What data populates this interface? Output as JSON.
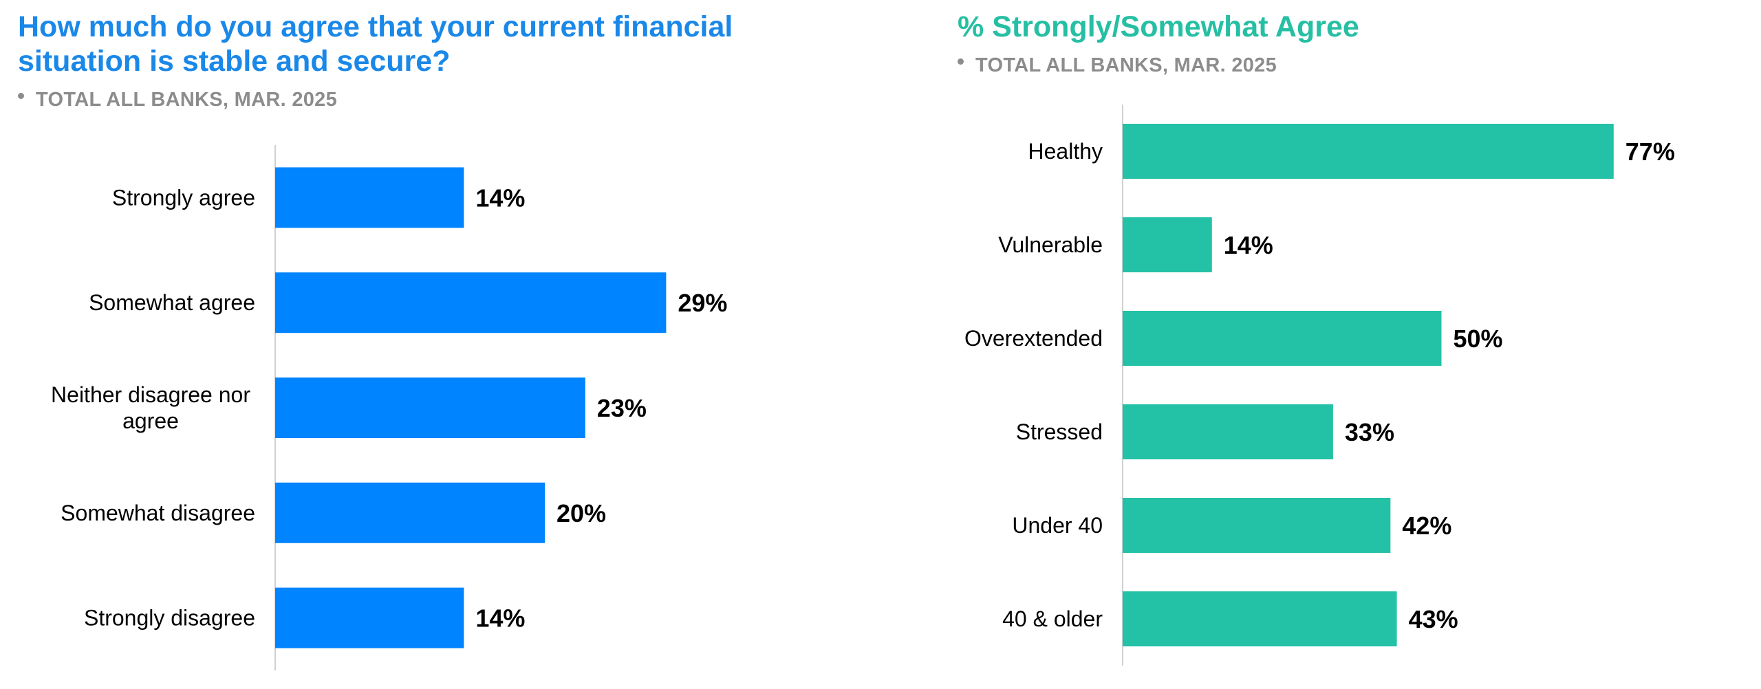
{
  "left": {
    "title": "How much do you agree that your current financial situation is stable and secure?",
    "subtitle": "TOTAL ALL BANKS, MAR. 2025",
    "colors": {
      "title": "#1a88e8",
      "bar": "#0084ff"
    }
  },
  "right": {
    "title": "% Strongly/Somewhat Agree",
    "subtitle": "TOTAL ALL BANKS, MAR. 2025",
    "colors": {
      "title": "#26bfa3",
      "bar": "#23c1a5"
    }
  },
  "chart_data": [
    {
      "type": "bar",
      "orientation": "horizontal",
      "title": "How much do you agree that your current financial situation is stable and secure?",
      "subtitle": "TOTAL ALL BANKS, MAR. 2025",
      "categories": [
        "Strongly agree",
        "Somewhat agree",
        "Neither disagree nor agree",
        "Somewhat disagree",
        "Strongly disagree"
      ],
      "values": [
        14,
        29,
        23,
        20,
        14
      ],
      "value_labels": [
        "14%",
        "29%",
        "23%",
        "20%",
        "14%"
      ],
      "xlabel": "",
      "ylabel": "",
      "grid": false,
      "legend": "none"
    },
    {
      "type": "bar",
      "orientation": "horizontal",
      "title": "% Strongly/Somewhat Agree",
      "subtitle": "TOTAL ALL BANKS, MAR. 2025",
      "categories": [
        "Healthy",
        "Vulnerable",
        "Overextended",
        "Stressed",
        "Under 40",
        "40 & older"
      ],
      "values": [
        77,
        14,
        50,
        33,
        42,
        43
      ],
      "value_labels": [
        "77%",
        "14%",
        "50%",
        "33%",
        "42%",
        "43%"
      ],
      "xlabel": "",
      "ylabel": "",
      "grid": false,
      "legend": "none"
    }
  ]
}
